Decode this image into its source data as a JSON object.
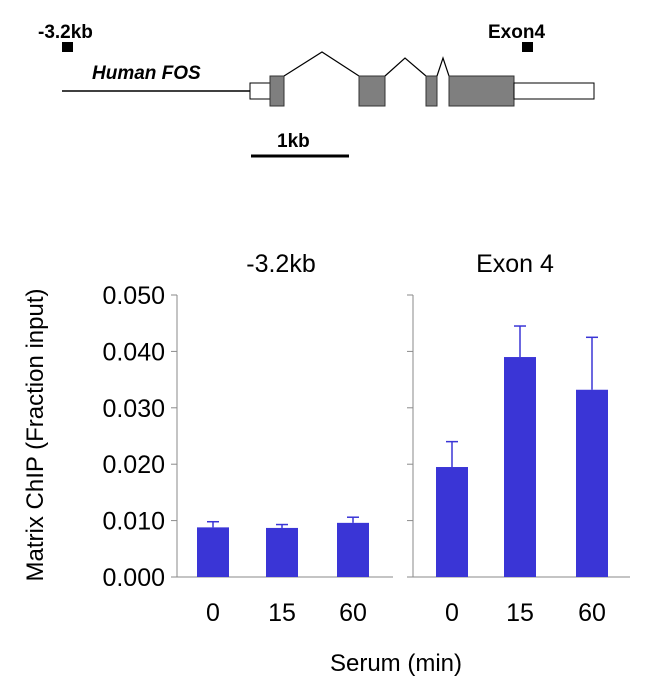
{
  "diagram": {
    "gene_label": "Human FOS",
    "marker_left_label": "-3.2kb",
    "marker_right_label": "Exon4",
    "scale_label": "1kb"
  },
  "chart_data": {
    "type": "bar",
    "ylabel": "Matrix ChIP (Fraction input)",
    "xlabel": "Serum (min)",
    "ylim": [
      0,
      0.05
    ],
    "yticks": [
      "0.000",
      "0.010",
      "0.020",
      "0.030",
      "0.040",
      "0.050"
    ],
    "bar_color": "#3a35d6",
    "panels": [
      {
        "title": "-3.2kb",
        "categories": [
          "0",
          "15",
          "60"
        ],
        "values": [
          0.0088,
          0.0087,
          0.0096
        ],
        "errors": [
          0.001,
          0.0006,
          0.001
        ]
      },
      {
        "title": "Exon 4",
        "categories": [
          "0",
          "15",
          "60"
        ],
        "values": [
          0.0195,
          0.039,
          0.0332
        ],
        "errors": [
          0.0045,
          0.0055,
          0.0093
        ]
      }
    ]
  }
}
